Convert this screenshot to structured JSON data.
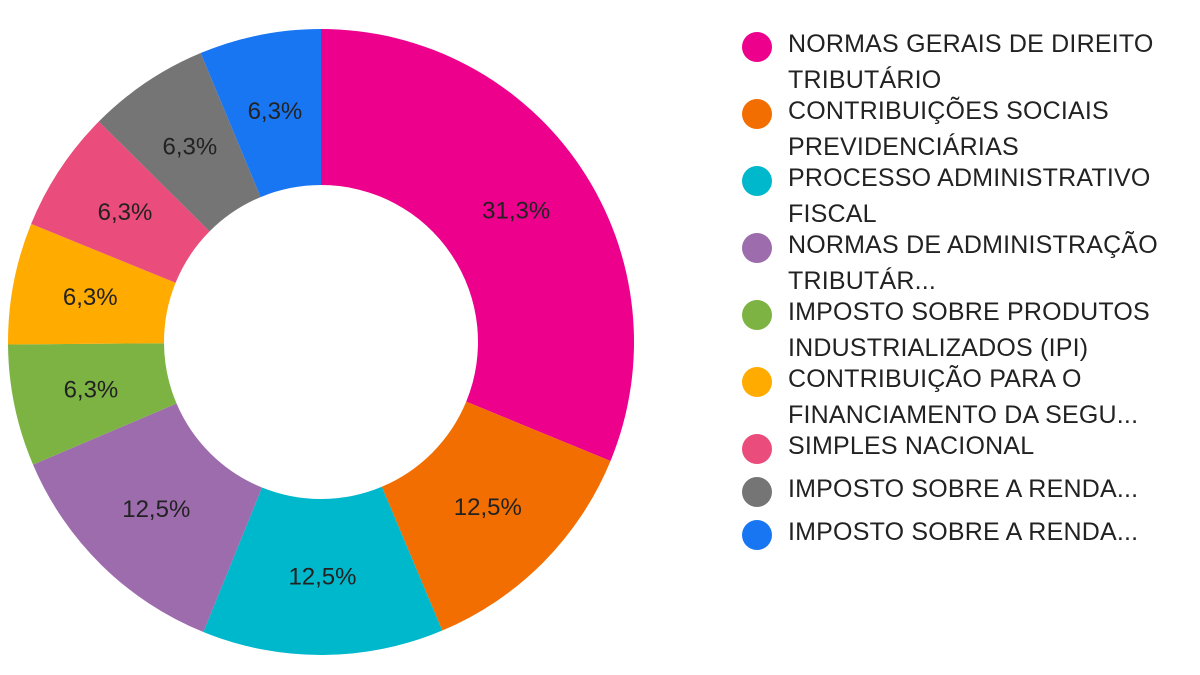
{
  "chart_data": {
    "type": "pie",
    "donut": true,
    "categories": [
      "NORMAS GERAIS DE DIREITO TRIBUTÁRIO",
      "CONTRIBUIÇÕES SOCIAIS PREVIDENCIÁRIAS",
      "PROCESSO ADMINISTRATIVO FISCAL",
      "NORMAS DE ADMINISTRAÇÃO TRIBUTÁR...",
      "IMPOSTO SOBRE PRODUTOS INDUSTRIALIZADOS (IPI)",
      "CONTRIBUIÇÃO PARA O FINANCIAMENTO DA SEGU...",
      "SIMPLES NACIONAL",
      "IMPOSTO SOBRE A RENDA...",
      "IMPOSTO SOBRE A RENDA..."
    ],
    "values": [
      31.3,
      12.5,
      12.5,
      12.5,
      6.3,
      6.3,
      6.3,
      6.3,
      6.3
    ],
    "data_labels": [
      "31,3%",
      "12,5%",
      "12,5%",
      "12,5%",
      "6,3%",
      "6,3%",
      "6,3%",
      "6,3%",
      "6,3%"
    ],
    "colors": [
      "#EC008C",
      "#F36E00",
      "#00B8CC",
      "#9C6CAD",
      "#7CB342",
      "#FFAB00",
      "#EA4C7C",
      "#757575",
      "#1976F2"
    ],
    "legend_position": "right"
  }
}
